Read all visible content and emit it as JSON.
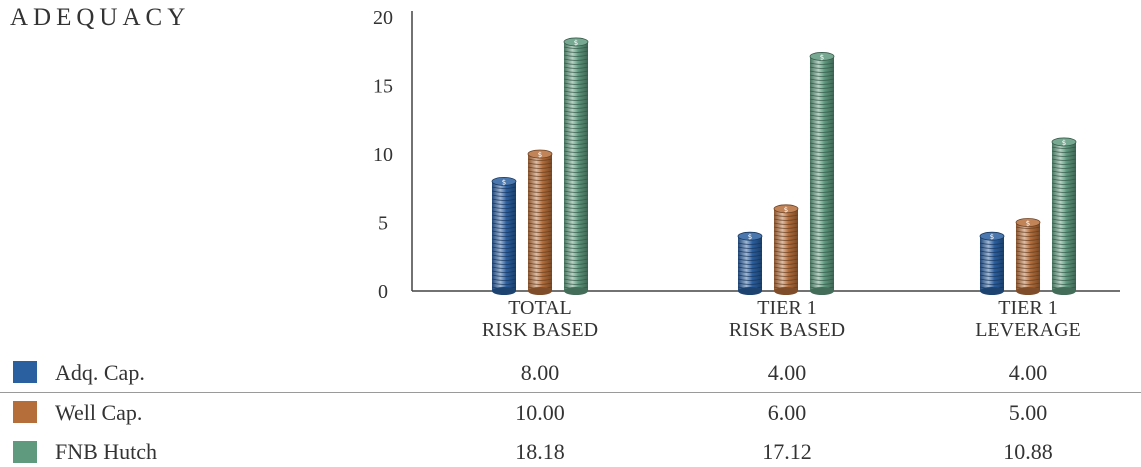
{
  "title": "ADEQUACY",
  "colors": {
    "adq": "#2a5fa0",
    "well": "#b56e3a",
    "fnb": "#5f9a7f"
  },
  "chart_data": {
    "type": "bar",
    "categories": [
      "TOTAL\nRISK BASED",
      "TIER 1\nRISK BASED",
      "TIER 1\nLEVERAGE"
    ],
    "ylim": [
      0,
      20
    ],
    "yticks": [
      "0",
      "5",
      "10",
      "15",
      "20"
    ],
    "series": [
      {
        "name": "Adq. Cap.",
        "values": [
          8.0,
          4.0,
          4.0
        ],
        "labels": [
          "8.00",
          "4.00",
          "4.00"
        ]
      },
      {
        "name": "Well Cap.",
        "values": [
          10.0,
          6.0,
          5.0
        ],
        "labels": [
          "10.00",
          "6.00",
          "5.00"
        ]
      },
      {
        "name": "FNB Hutch",
        "values": [
          18.18,
          17.12,
          10.88
        ],
        "labels": [
          "18.18",
          "17.12",
          "10.88"
        ]
      }
    ],
    "grid": false,
    "legend": "table-below"
  }
}
